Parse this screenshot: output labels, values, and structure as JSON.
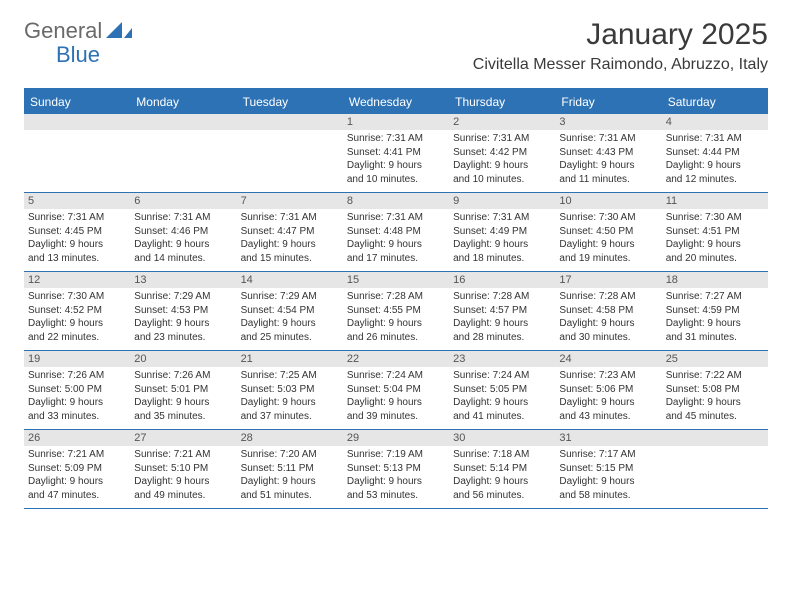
{
  "logo": {
    "text1": "General",
    "text2": "Blue"
  },
  "title": "January 2025",
  "location": "Civitella Messer Raimondo, Abruzzo, Italy",
  "colors": {
    "accent": "#2d72b5",
    "dayband": "#e6e6e6",
    "background": "#ffffff",
    "text": "#333333",
    "logo_gray": "#6a6a6a"
  },
  "typography": {
    "title_fontsize": 30,
    "location_fontsize": 16,
    "dayhead_fontsize": 12,
    "daynum_fontsize": 11,
    "body_fontsize": 10
  },
  "calendar": {
    "day_headers": [
      "Sunday",
      "Monday",
      "Tuesday",
      "Wednesday",
      "Thursday",
      "Friday",
      "Saturday"
    ],
    "weeks": [
      [
        {
          "num": "",
          "lines": []
        },
        {
          "num": "",
          "lines": []
        },
        {
          "num": "",
          "lines": []
        },
        {
          "num": "1",
          "lines": [
            "Sunrise: 7:31 AM",
            "Sunset: 4:41 PM",
            "Daylight: 9 hours",
            "and 10 minutes."
          ]
        },
        {
          "num": "2",
          "lines": [
            "Sunrise: 7:31 AM",
            "Sunset: 4:42 PM",
            "Daylight: 9 hours",
            "and 10 minutes."
          ]
        },
        {
          "num": "3",
          "lines": [
            "Sunrise: 7:31 AM",
            "Sunset: 4:43 PM",
            "Daylight: 9 hours",
            "and 11 minutes."
          ]
        },
        {
          "num": "4",
          "lines": [
            "Sunrise: 7:31 AM",
            "Sunset: 4:44 PM",
            "Daylight: 9 hours",
            "and 12 minutes."
          ]
        }
      ],
      [
        {
          "num": "5",
          "lines": [
            "Sunrise: 7:31 AM",
            "Sunset: 4:45 PM",
            "Daylight: 9 hours",
            "and 13 minutes."
          ]
        },
        {
          "num": "6",
          "lines": [
            "Sunrise: 7:31 AM",
            "Sunset: 4:46 PM",
            "Daylight: 9 hours",
            "and 14 minutes."
          ]
        },
        {
          "num": "7",
          "lines": [
            "Sunrise: 7:31 AM",
            "Sunset: 4:47 PM",
            "Daylight: 9 hours",
            "and 15 minutes."
          ]
        },
        {
          "num": "8",
          "lines": [
            "Sunrise: 7:31 AM",
            "Sunset: 4:48 PM",
            "Daylight: 9 hours",
            "and 17 minutes."
          ]
        },
        {
          "num": "9",
          "lines": [
            "Sunrise: 7:31 AM",
            "Sunset: 4:49 PM",
            "Daylight: 9 hours",
            "and 18 minutes."
          ]
        },
        {
          "num": "10",
          "lines": [
            "Sunrise: 7:30 AM",
            "Sunset: 4:50 PM",
            "Daylight: 9 hours",
            "and 19 minutes."
          ]
        },
        {
          "num": "11",
          "lines": [
            "Sunrise: 7:30 AM",
            "Sunset: 4:51 PM",
            "Daylight: 9 hours",
            "and 20 minutes."
          ]
        }
      ],
      [
        {
          "num": "12",
          "lines": [
            "Sunrise: 7:30 AM",
            "Sunset: 4:52 PM",
            "Daylight: 9 hours",
            "and 22 minutes."
          ]
        },
        {
          "num": "13",
          "lines": [
            "Sunrise: 7:29 AM",
            "Sunset: 4:53 PM",
            "Daylight: 9 hours",
            "and 23 minutes."
          ]
        },
        {
          "num": "14",
          "lines": [
            "Sunrise: 7:29 AM",
            "Sunset: 4:54 PM",
            "Daylight: 9 hours",
            "and 25 minutes."
          ]
        },
        {
          "num": "15",
          "lines": [
            "Sunrise: 7:28 AM",
            "Sunset: 4:55 PM",
            "Daylight: 9 hours",
            "and 26 minutes."
          ]
        },
        {
          "num": "16",
          "lines": [
            "Sunrise: 7:28 AM",
            "Sunset: 4:57 PM",
            "Daylight: 9 hours",
            "and 28 minutes."
          ]
        },
        {
          "num": "17",
          "lines": [
            "Sunrise: 7:28 AM",
            "Sunset: 4:58 PM",
            "Daylight: 9 hours",
            "and 30 minutes."
          ]
        },
        {
          "num": "18",
          "lines": [
            "Sunrise: 7:27 AM",
            "Sunset: 4:59 PM",
            "Daylight: 9 hours",
            "and 31 minutes."
          ]
        }
      ],
      [
        {
          "num": "19",
          "lines": [
            "Sunrise: 7:26 AM",
            "Sunset: 5:00 PM",
            "Daylight: 9 hours",
            "and 33 minutes."
          ]
        },
        {
          "num": "20",
          "lines": [
            "Sunrise: 7:26 AM",
            "Sunset: 5:01 PM",
            "Daylight: 9 hours",
            "and 35 minutes."
          ]
        },
        {
          "num": "21",
          "lines": [
            "Sunrise: 7:25 AM",
            "Sunset: 5:03 PM",
            "Daylight: 9 hours",
            "and 37 minutes."
          ]
        },
        {
          "num": "22",
          "lines": [
            "Sunrise: 7:24 AM",
            "Sunset: 5:04 PM",
            "Daylight: 9 hours",
            "and 39 minutes."
          ]
        },
        {
          "num": "23",
          "lines": [
            "Sunrise: 7:24 AM",
            "Sunset: 5:05 PM",
            "Daylight: 9 hours",
            "and 41 minutes."
          ]
        },
        {
          "num": "24",
          "lines": [
            "Sunrise: 7:23 AM",
            "Sunset: 5:06 PM",
            "Daylight: 9 hours",
            "and 43 minutes."
          ]
        },
        {
          "num": "25",
          "lines": [
            "Sunrise: 7:22 AM",
            "Sunset: 5:08 PM",
            "Daylight: 9 hours",
            "and 45 minutes."
          ]
        }
      ],
      [
        {
          "num": "26",
          "lines": [
            "Sunrise: 7:21 AM",
            "Sunset: 5:09 PM",
            "Daylight: 9 hours",
            "and 47 minutes."
          ]
        },
        {
          "num": "27",
          "lines": [
            "Sunrise: 7:21 AM",
            "Sunset: 5:10 PM",
            "Daylight: 9 hours",
            "and 49 minutes."
          ]
        },
        {
          "num": "28",
          "lines": [
            "Sunrise: 7:20 AM",
            "Sunset: 5:11 PM",
            "Daylight: 9 hours",
            "and 51 minutes."
          ]
        },
        {
          "num": "29",
          "lines": [
            "Sunrise: 7:19 AM",
            "Sunset: 5:13 PM",
            "Daylight: 9 hours",
            "and 53 minutes."
          ]
        },
        {
          "num": "30",
          "lines": [
            "Sunrise: 7:18 AM",
            "Sunset: 5:14 PM",
            "Daylight: 9 hours",
            "and 56 minutes."
          ]
        },
        {
          "num": "31",
          "lines": [
            "Sunrise: 7:17 AM",
            "Sunset: 5:15 PM",
            "Daylight: 9 hours",
            "and 58 minutes."
          ]
        },
        {
          "num": "",
          "lines": []
        }
      ]
    ]
  }
}
